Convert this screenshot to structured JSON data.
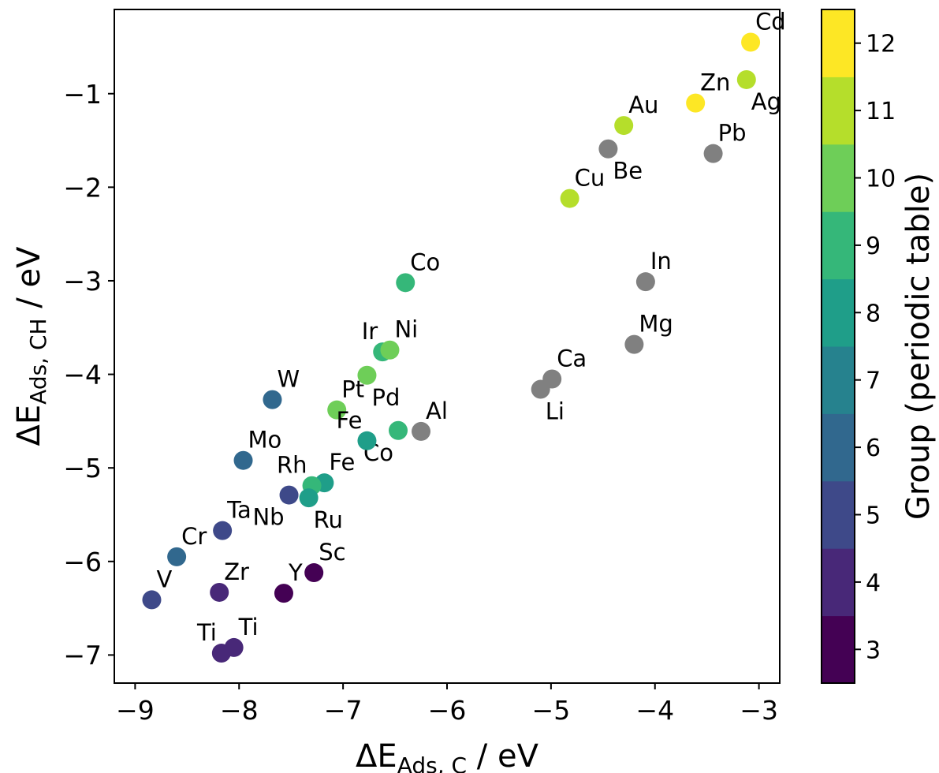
{
  "chart_data": {
    "type": "scatter",
    "title": "",
    "xlabel": {
      "prefix": "ΔE",
      "sub": "Ads, C",
      "suffix": " / eV"
    },
    "ylabel": {
      "prefix": "ΔE",
      "sub": "Ads, CH",
      "suffix": " / eV"
    },
    "xlim": [
      -9.2,
      -2.8
    ],
    "ylim": [
      -7.3,
      -0.1
    ],
    "xticks": [
      {
        "value": -9,
        "label": "−9"
      },
      {
        "value": -8,
        "label": "−8"
      },
      {
        "value": -7,
        "label": "−7"
      },
      {
        "value": -6,
        "label": "−6"
      },
      {
        "value": -5,
        "label": "−5"
      },
      {
        "value": -4,
        "label": "−4"
      },
      {
        "value": -3,
        "label": "−3"
      }
    ],
    "yticks": [
      {
        "value": -1,
        "label": "−1"
      },
      {
        "value": -2,
        "label": "−2"
      },
      {
        "value": -3,
        "label": "−3"
      },
      {
        "value": -4,
        "label": "−4"
      },
      {
        "value": -5,
        "label": "−5"
      },
      {
        "value": -6,
        "label": "−6"
      },
      {
        "value": -7,
        "label": "−7"
      }
    ],
    "grid": false,
    "colorbar": {
      "label": "Group (periodic table)",
      "groups": [
        3,
        4,
        5,
        6,
        7,
        8,
        9,
        10,
        11,
        12
      ],
      "colors": {
        "3": "#440154",
        "4": "#482878",
        "5": "#3e4989",
        "6": "#31688e",
        "7": "#26828e",
        "8": "#1f9e89",
        "9": "#35b779",
        "10": "#6ece58",
        "11": "#b5de2b",
        "12": "#fde725"
      },
      "nogroup_color": "#808080"
    },
    "points": [
      {
        "label": "Cd",
        "x": -3.08,
        "y": -0.45,
        "group": 12,
        "lpos": "ne"
      },
      {
        "label": "Ag",
        "x": -3.12,
        "y": -0.85,
        "group": 11,
        "lpos": "se"
      },
      {
        "label": "Zn",
        "x": -3.61,
        "y": -1.1,
        "group": 12,
        "lpos": "ne"
      },
      {
        "label": "Au",
        "x": -4.3,
        "y": -1.34,
        "group": 11,
        "lpos": "ne"
      },
      {
        "label": "Pb",
        "x": -3.44,
        "y": -1.64,
        "group": null,
        "lpos": "ne"
      },
      {
        "label": "Be",
        "x": -4.45,
        "y": -1.59,
        "group": null,
        "lpos": "se"
      },
      {
        "label": "Cu",
        "x": -4.82,
        "y": -2.12,
        "group": 11,
        "lpos": "ne"
      },
      {
        "label": "In",
        "x": -4.09,
        "y": -3.01,
        "group": null,
        "lpos": "ne"
      },
      {
        "label": "Co",
        "x": -6.4,
        "y": -3.02,
        "group": 9,
        "lpos": "ne"
      },
      {
        "label": "Mg",
        "x": -4.2,
        "y": -3.68,
        "group": null,
        "lpos": "ne"
      },
      {
        "label": "Ir",
        "x": -6.62,
        "y": -3.76,
        "group": 9,
        "lpos": "nw"
      },
      {
        "label": "Ni",
        "x": -6.55,
        "y": -3.74,
        "group": 10,
        "lpos": "ne"
      },
      {
        "label": "Ca",
        "x": -4.99,
        "y": -4.05,
        "group": null,
        "lpos": "ne"
      },
      {
        "label": "Li",
        "x": -5.1,
        "y": -4.16,
        "group": null,
        "lpos": "se"
      },
      {
        "label": "W",
        "x": -7.68,
        "y": -4.27,
        "group": 6,
        "lpos": "ne"
      },
      {
        "label": "Pd",
        "x": -6.77,
        "y": -4.01,
        "group": 10,
        "lpos": "se"
      },
      {
        "label": "Pt",
        "x": -7.06,
        "y": -4.38,
        "group": 10,
        "lpos": "ne"
      },
      {
        "label": "Al",
        "x": -6.25,
        "y": -4.61,
        "group": null,
        "lpos": "ne"
      },
      {
        "label": "Co",
        "x": -6.47,
        "y": -4.6,
        "group": 9,
        "lpos": "sw"
      },
      {
        "label": "Fe",
        "x": -6.77,
        "y": -4.71,
        "group": 8,
        "lpos": "nw"
      },
      {
        "label": "Mo",
        "x": -7.96,
        "y": -4.92,
        "group": 6,
        "lpos": "ne"
      },
      {
        "label": "Fe",
        "x": -7.18,
        "y": -5.16,
        "group": 8,
        "lpos": "ne"
      },
      {
        "label": "Rh",
        "x": -7.3,
        "y": -5.19,
        "group": 9,
        "lpos": "nw"
      },
      {
        "label": "Nb",
        "x": -7.52,
        "y": -5.29,
        "group": 5,
        "lpos": "sw"
      },
      {
        "label": "Ru",
        "x": -7.33,
        "y": -5.32,
        "group": 8,
        "lpos": "se"
      },
      {
        "label": "Ta",
        "x": -8.16,
        "y": -5.67,
        "group": 5,
        "lpos": "ne"
      },
      {
        "label": "Cr",
        "x": -8.6,
        "y": -5.95,
        "group": 6,
        "lpos": "ne"
      },
      {
        "label": "Sc",
        "x": -7.28,
        "y": -6.12,
        "group": 3,
        "lpos": "ne"
      },
      {
        "label": "Zr",
        "x": -8.19,
        "y": -6.33,
        "group": 4,
        "lpos": "ne"
      },
      {
        "label": "Y",
        "x": -7.57,
        "y": -6.34,
        "group": 3,
        "lpos": "ne"
      },
      {
        "label": "V",
        "x": -8.84,
        "y": -6.41,
        "group": 5,
        "lpos": "ne"
      },
      {
        "label": "Ti",
        "x": -8.05,
        "y": -6.92,
        "group": 4,
        "lpos": "ne"
      },
      {
        "label": "Ti",
        "x": -8.17,
        "y": -6.98,
        "group": 4,
        "lpos": "nw"
      }
    ]
  }
}
